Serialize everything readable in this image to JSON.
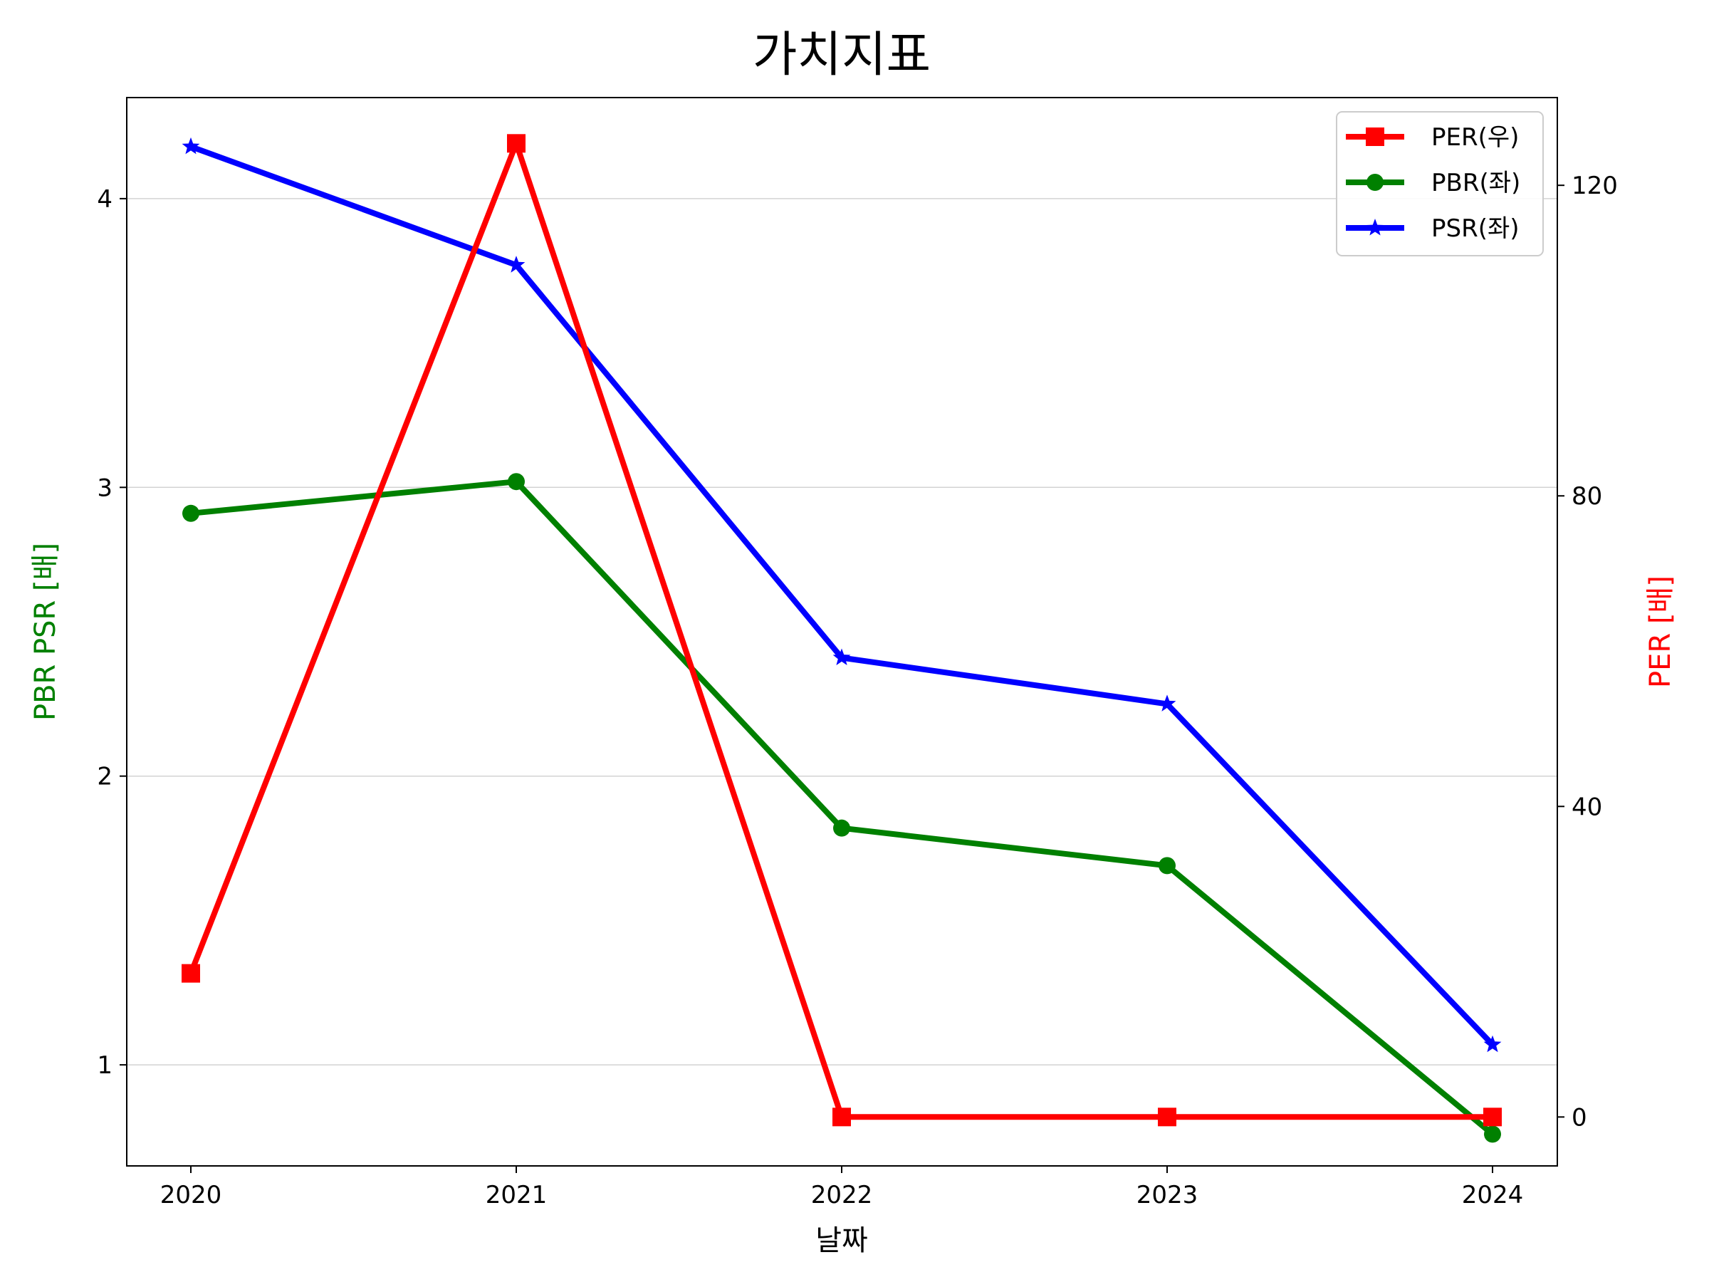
{
  "chart_data": {
    "type": "line",
    "title": "가치지표",
    "xlabel": "날짜",
    "ylabel_left": "PBR PSR [배]",
    "ylabel_right": "PER [배]",
    "x": [
      "2020",
      "2021",
      "2022",
      "2023",
      "2024"
    ],
    "left_axis": {
      "ylim": [
        0.65,
        4.35
      ],
      "ticks": [
        "1",
        "2",
        "3",
        "4"
      ],
      "grid": true,
      "label_color": "#008000"
    },
    "right_axis": {
      "ylim": [
        -6.3,
        131.3
      ],
      "ticks": [
        "0",
        "40",
        "80",
        "120"
      ],
      "label_color": "#ff0000"
    },
    "series": [
      {
        "name": "PER(우)",
        "axis": "right",
        "color": "#ff0000",
        "marker": "square",
        "values": [
          18.5,
          125.4,
          0,
          0,
          0
        ]
      },
      {
        "name": "PBR(좌)",
        "axis": "left",
        "color": "#008000",
        "marker": "circle",
        "values": [
          2.91,
          3.02,
          1.82,
          1.69,
          0.76
        ]
      },
      {
        "name": "PSR(좌)",
        "axis": "left",
        "color": "#0000ff",
        "marker": "star",
        "values": [
          4.18,
          3.77,
          2.41,
          2.25,
          1.07
        ]
      }
    ],
    "legend": {
      "position": "top-right"
    }
  }
}
